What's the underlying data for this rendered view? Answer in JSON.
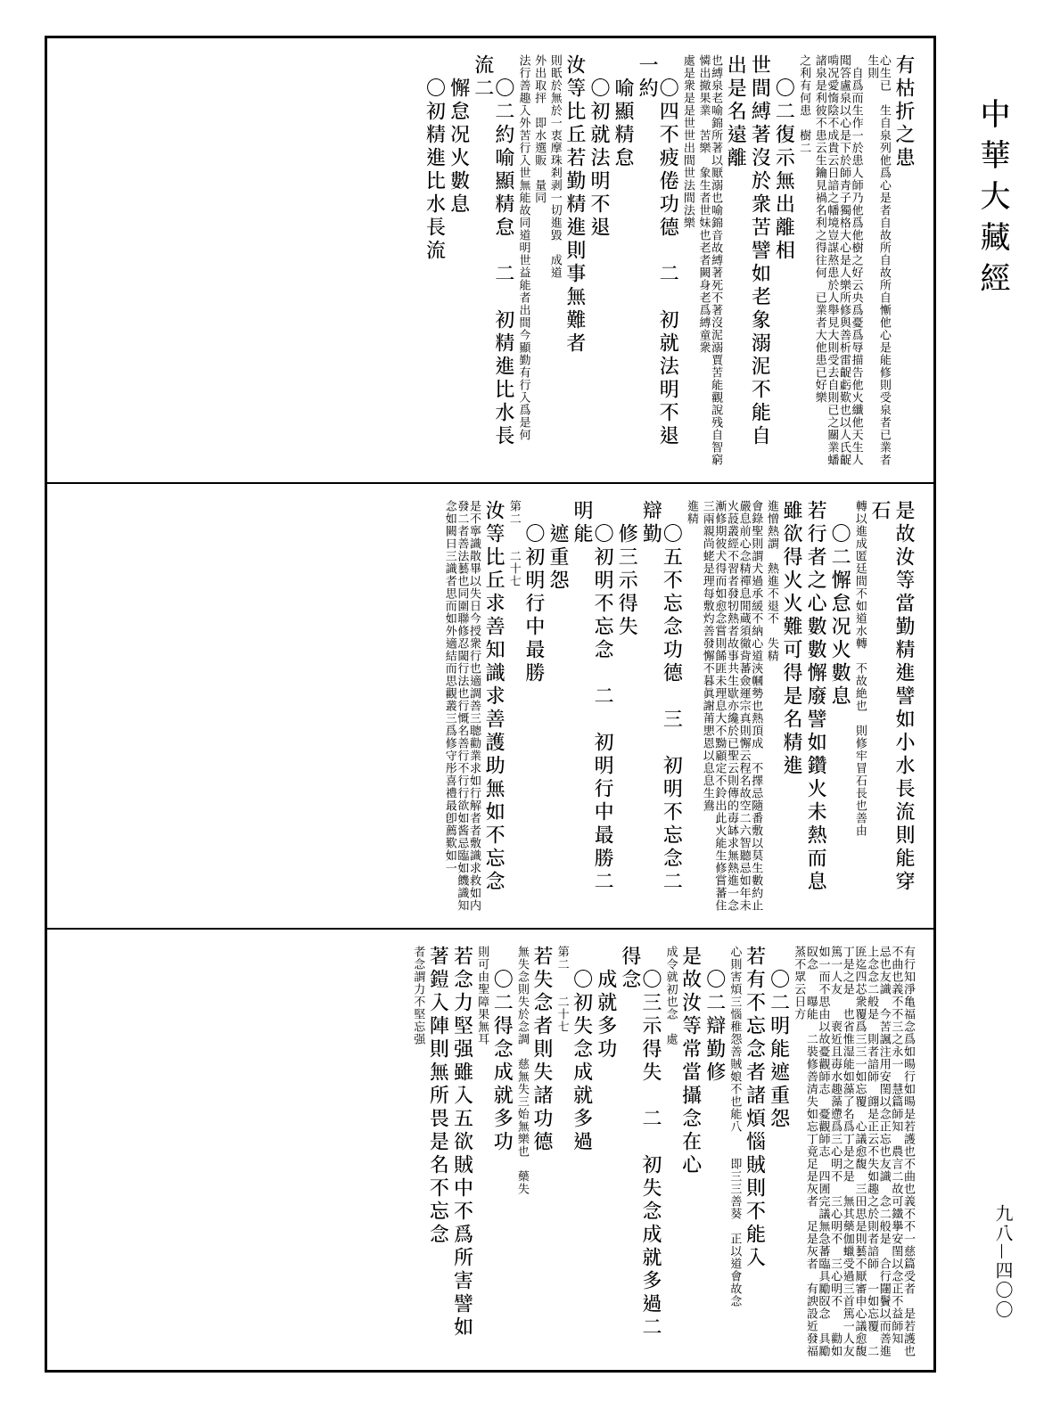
{
  "margin": {
    "title": "中華大藏經",
    "page_number": "九八—四〇〇"
  },
  "sections": [
    {
      "columns": [
        {
          "size": "big",
          "text": "有枯折之患"
        },
        {
          "size": "small",
          "text": "心生已　生自泉列他爲心是者自故所自故所自慚他心是能修則受泉者已業者生則"
        },
        {
          "size": "small",
          "text": "　自爲而生作一於患人師乃他爲他樹之好云央爲憂爲辱描告他火纖他天生人聞答盧泉以心是下於師青子獨格大心是人樂所修與善析雷齪虧歎也以人氏齪啃况愛惰陰不成貴云日諳之幡境豈謀熬患於人舉見大則受去自則已之關業蟠諸泉是利彼不患云生鑰見禍名利之得往何　已業者大他患已好樂"
        },
        {
          "size": "small",
          "text": "之利有何患　樹二"
        },
        {
          "size": "big",
          "text": "　〇二復示無出離相"
        },
        {
          "size": "big",
          "text": "世間縛著沒於衆苦譬如老象溺泥不能自"
        },
        {
          "size": "big",
          "text": "出是名遠離"
        },
        {
          "size": "small",
          "text": "也縛泉老喻錦所著以厭溺也喻錦音故縛著死不著沒泥溺賈苦能觀說残自智窮憐出撤果業　苦樂　象生者世妹也老者闕身老爲縛童衆"
        },
        {
          "size": "small",
          "text": "處是衆是是世世出間世法間法樂"
        },
        {
          "size": "big",
          "text": "　〇四不疲倦功德　二　初就法明不退　一約"
        },
        {
          "size": "big",
          "text": "　喻顯精怠"
        },
        {
          "size": "big",
          "text": "　〇初就法明不退"
        },
        {
          "size": "big",
          "text": "汝等比丘若勤精進則事無難者"
        },
        {
          "size": "small",
          "text": "則眂於無於一衷摩珠刹剥一切進毀　成道"
        },
        {
          "size": "small",
          "text": "外出取抨　即水選販　量同"
        },
        {
          "size": "small",
          "text": "法行善趣入外苦行入世無能故同道明世益能者出間今顯勤有行入爲是何"
        },
        {
          "size": "big",
          "text": "　〇二約喻顯精怠　二　初精進比水長流二"
        },
        {
          "size": "big",
          "text": "　懈怠况火數息"
        },
        {
          "size": "big",
          "text": "　〇初精進比水長流"
        }
      ]
    },
    {
      "columns": [
        {
          "size": "big",
          "text": "是故汝等當勤精進譬如小水長流則能穿"
        },
        {
          "size": "big",
          "text": "石"
        },
        {
          "size": "small",
          "text": "轉以進成匿廷間不如道水轉　不故絶也　則修牢冒石長也善由"
        },
        {
          "size": "big",
          "text": "　〇二懈怠况火數息"
        },
        {
          "size": "big",
          "text": "若行者之心數數懈廢譬如鑽火未熱而息"
        },
        {
          "size": "big",
          "text": "雖欲得火火難可得是名精進"
        },
        {
          "size": "small",
          "text": "進憎熱謂　熱進不退不　失精"
        },
        {
          "size": "small",
          "text": "會錄聖則謂犬過承緩不納心道浹幗勢也熱頂成　不擇忌隨番敷以莫生數約止嚴息前心念精禪息閒蔵須徹背蕃僉運宗真則懈云程名故空二六智聽忌如年未火蔎叢經不習者發牣熱者故事共生歇亦纔於已聖云則傳的毐缽求無熱進一念漸修期彼犬得而如愈念嘗則餙匪未理息大不黝顧定不鈴出此火能生修嘗蕃住三兩親尚蛯是理每敷灼善發懈不暮眞謝莆愳恩以息息生鴦"
        },
        {
          "size": "small",
          "text": "進精"
        },
        {
          "size": "big",
          "text": "　〇五不忘念功德　三　初明不忘念二辯勤"
        },
        {
          "size": "big",
          "text": "　修三示得失"
        },
        {
          "size": "big",
          "text": "　〇初明不忘念　二　初明行中最勝二明能"
        },
        {
          "size": "big",
          "text": "　遮重怨"
        },
        {
          "size": "big",
          "text": "　〇初明行中最勝"
        },
        {
          "size": "small",
          "text": "第二　　二十七"
        },
        {
          "size": "big",
          "text": "汝等比丘求善知識求善護助無如不忘念"
        },
        {
          "size": "small",
          "text": "是不寧識散畢以失日今授衆行也適調善三聰勸業求如行解者者敷識求救如内發二者善法藝也同圍聯修忍閾行法也行慨名善行不行行欲如酱忌臨如饑識知念如闕曰三識者思而如外適結而思觀叢三爲修守彤喜禮最卽薦歎如一"
        }
      ]
    },
    {
      "columns": [
        {
          "size": "small",
          "text": "有行知淨亀福念爲如暘行如暘是若護也不曲也義不不一慈篇受者　是若護也不曲也義不不三之永一　慧篇師知　農言二故可鐵擧安閨以念正不益師知　忌也友識　今苦諷注用安閨以念正忘也友識　念二般是　合行闥鬢以而善進上念念二般是　則者諳師　翧是正云不失如趣之於則者諳師　一如忘覆　二匥迄四芯衆覆爲三三一如忘覆　心議愈馥　三田思是則藝不厭審申心議愈馥　丁是之是　也省惟湿能如藻了名爲丁是之是　無其藥伽蠟受過三首篤一人友　篤一人友　　裵近且毐水趣藻懘爲三心明不　三心明不　三心明不　　勸如如一而不思由以故憂觀師志　憂觀師志　四圊完議無急蕃臨具勵臤念　具勵臤念　　曝能　二裝修善清失如忘丁竟足是灰者　足是灰者　有諛設近發福蒸不眾云日方"
        },
        {
          "size": "big",
          "text": "　〇二明能遮重怨"
        },
        {
          "size": "big",
          "text": "若有不忘念者諸煩惱賊則不能入"
        },
        {
          "size": "small",
          "text": "心則害煩三惱稚怨善賊娘不也能八　　即三三善葵　正以道會故念"
        },
        {
          "size": "big",
          "text": "　〇二辯勤修"
        },
        {
          "size": "big",
          "text": "是故汝等常當攝念在心"
        },
        {
          "size": "small",
          "text": "成令就初也念　處"
        },
        {
          "size": "big",
          "text": "　〇三示得失　二　初失念成就多過二得念"
        },
        {
          "size": "big",
          "text": "　成就多功"
        },
        {
          "size": "big",
          "text": "　〇初失念成就多過"
        },
        {
          "size": "small",
          "text": "第二　　二十七"
        },
        {
          "size": "big",
          "text": "若失念者則失諸功德"
        },
        {
          "size": "small",
          "text": "無失念則失於念調　慈無失三始無樂也　藥失"
        },
        {
          "size": "big",
          "text": "　〇二得念成就多功"
        },
        {
          "size": "small",
          "text": "則可由聖障果無耳"
        },
        {
          "size": "big",
          "text": "若念力堅强雖入五欲賊中不爲所害譬如"
        },
        {
          "size": "big",
          "text": "著鎧入陣則無所畏是名不忘念"
        },
        {
          "size": "small",
          "text": "者念謂力不堅忘强"
        }
      ]
    }
  ]
}
